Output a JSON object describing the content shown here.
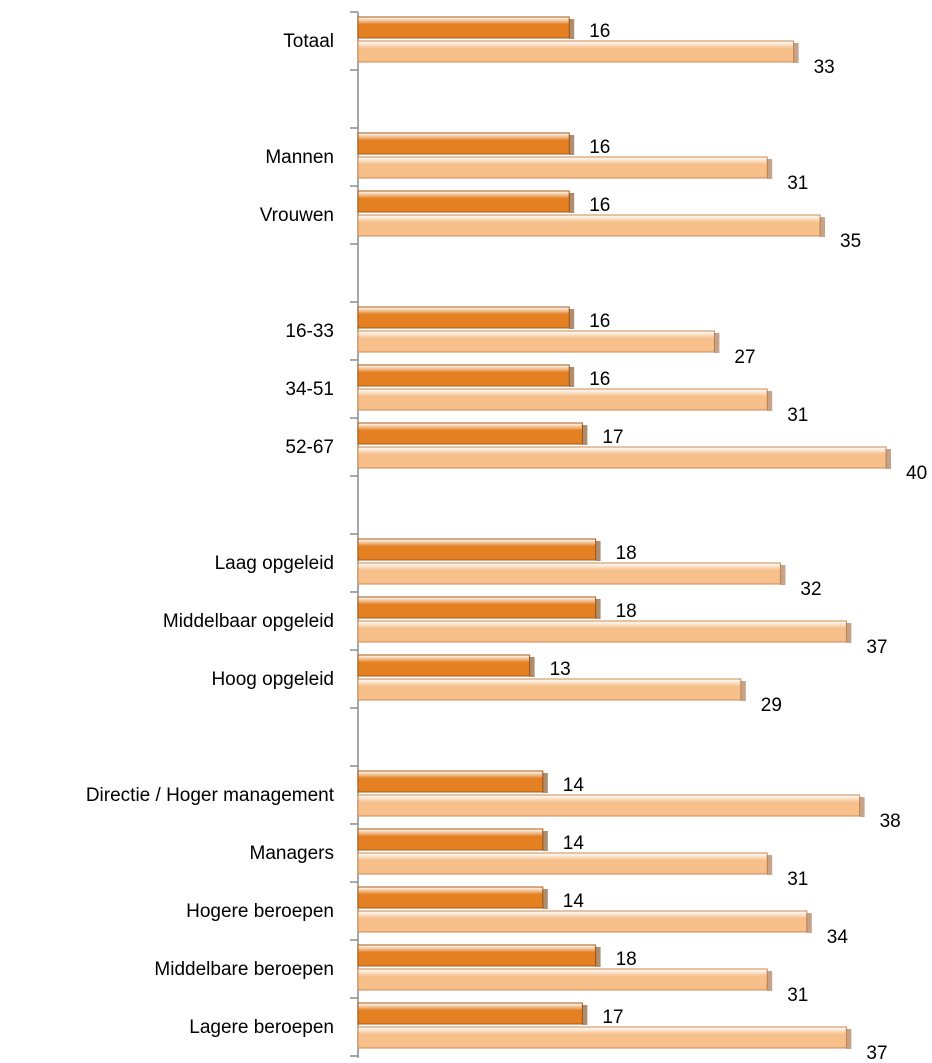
{
  "chart_data": {
    "type": "hbar",
    "categories": [
      "Totaal",
      null,
      "Mannen",
      "Vrouwen",
      null,
      "16-33",
      "34-51",
      "52-67",
      null,
      "Laag opgeleid",
      "Middelbaar opgeleid",
      "Hoog opgeleid",
      null,
      "Directie / Hoger management",
      "Managers",
      "Hogere beroepen",
      "Middelbare beroepen",
      "Lagere beroepen"
    ],
    "series": [
      {
        "color": "#e47f22",
        "values": [
          16,
          null,
          16,
          16,
          null,
          16,
          16,
          17,
          null,
          18,
          18,
          13,
          null,
          14,
          14,
          14,
          18,
          17
        ]
      },
      {
        "color": "#f7bf8a",
        "values": [
          33,
          null,
          31,
          35,
          null,
          27,
          31,
          40,
          null,
          32,
          37,
          29,
          null,
          38,
          31,
          34,
          31,
          37
        ]
      }
    ]
  }
}
